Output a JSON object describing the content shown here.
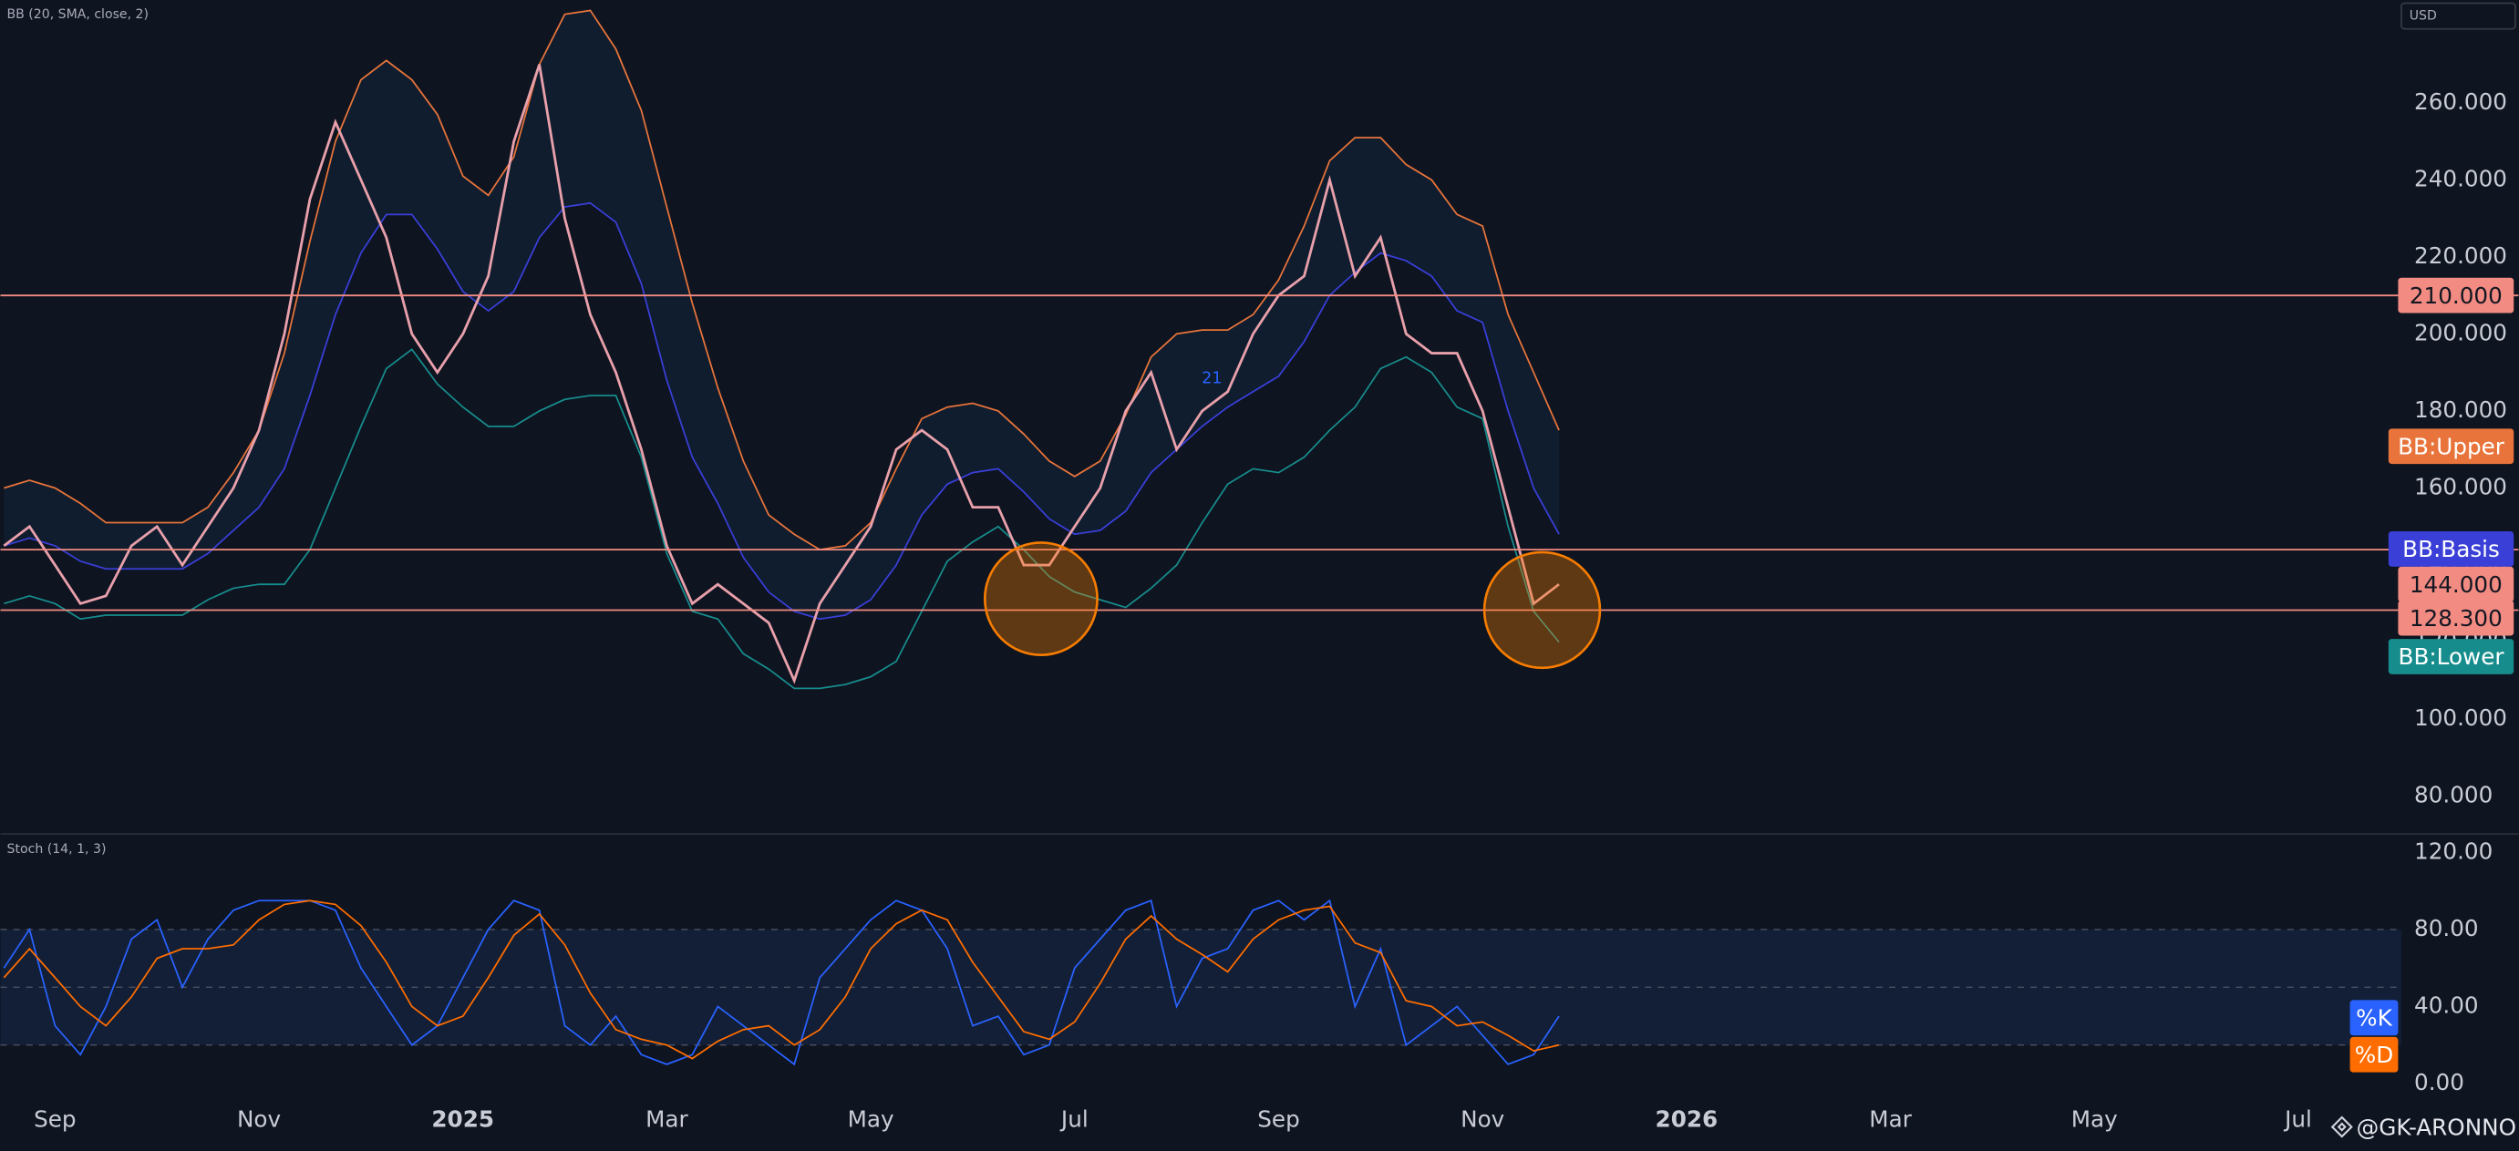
{
  "chart_data": [
    {
      "type": "line",
      "title": "BB (20, SMA, close, 2)",
      "currency": "USD",
      "annotation": "21",
      "watermark": "@GK-ARONNO",
      "x": [
        -0.5,
        -0.25,
        0,
        0.25,
        0.5,
        0.75,
        1,
        1.25,
        1.5,
        1.75,
        2,
        2.25,
        2.5,
        2.75,
        3,
        3.25,
        3.5,
        3.75,
        4,
        4.25,
        4.5,
        4.75,
        5,
        5.25,
        5.5,
        5.75,
        6,
        6.25,
        6.5,
        6.75,
        7,
        7.25,
        7.5,
        7.75,
        8,
        8.25,
        8.5,
        8.75,
        9,
        9.25,
        9.5,
        9.75,
        10,
        10.25,
        10.5,
        10.75,
        11,
        11.25,
        11.5,
        11.75,
        12,
        12.25,
        12.5,
        12.75,
        13,
        13.25,
        13.5,
        13.75,
        14,
        14.25,
        14.5,
        14.75
      ],
      "xlim": [
        -0.535,
        23.01
      ],
      "xticks": [
        {
          "value": 0,
          "label": "Sep"
        },
        {
          "value": 2,
          "label": "Nov"
        },
        {
          "value": 4,
          "label": "2025"
        },
        {
          "value": 6,
          "label": "Mar"
        },
        {
          "value": 8,
          "label": "May"
        },
        {
          "value": 10,
          "label": "Jul"
        },
        {
          "value": 12,
          "label": "Sep"
        },
        {
          "value": 14,
          "label": "Nov"
        },
        {
          "value": 16,
          "label": "2026"
        },
        {
          "value": 18,
          "label": "Mar"
        },
        {
          "value": 20,
          "label": "May"
        },
        {
          "value": 22,
          "label": "Jul"
        }
      ],
      "ylim": [
        70.4,
        286.7
      ],
      "yticks": [
        {
          "value": 80,
          "label": "80.000"
        },
        {
          "value": 100,
          "label": "100.000"
        },
        {
          "value": 120,
          "label": "120.000"
        },
        {
          "value": 140,
          "label": "140.000"
        },
        {
          "value": 160,
          "label": "160.000"
        },
        {
          "value": 180,
          "label": "180.000"
        },
        {
          "value": 200,
          "label": "200.000"
        },
        {
          "value": 220,
          "label": "220.000"
        },
        {
          "value": 240,
          "label": "240.000"
        },
        {
          "value": 260,
          "label": "260.000"
        }
      ],
      "hlines": [
        {
          "value": 210,
          "label": "210.000"
        },
        {
          "value": 144,
          "label": "144.000"
        },
        {
          "value": 128.3,
          "label": "128.300"
        }
      ],
      "hline_color": "#f28b82",
      "series": [
        {
          "color": "#e8a0ab",
          "values": [
            145,
            150,
            140,
            130,
            132,
            145,
            150,
            140,
            150,
            160,
            175,
            200,
            235,
            255,
            240,
            225,
            200,
            190,
            200,
            215,
            250,
            270,
            230,
            205,
            190,
            170,
            145,
            130,
            135,
            130,
            125,
            110,
            130,
            140,
            150,
            170,
            175,
            170,
            155,
            155,
            140,
            140,
            150,
            160,
            180,
            190,
            170,
            180,
            185,
            200,
            210,
            215,
            240,
            215,
            225,
            200,
            195,
            195,
            180,
            155,
            130,
            135
          ]
        },
        {
          "name": "BB:Upper",
          "color": "#e8743b",
          "values": [
            160,
            162,
            160,
            156,
            151,
            151,
            151,
            151,
            155,
            164,
            175,
            195,
            224,
            250,
            266,
            271,
            266,
            257,
            241,
            236,
            246,
            270,
            283,
            284,
            274,
            258,
            233,
            208,
            186,
            167,
            153,
            148,
            144,
            145,
            151,
            165,
            178,
            181,
            182,
            180,
            174,
            167,
            163,
            167,
            179,
            194,
            200,
            201,
            201,
            205,
            214,
            228,
            245,
            251,
            251,
            244,
            240,
            231,
            228,
            205,
            190,
            175
          ]
        },
        {
          "name": "BB:Basis",
          "color": "#3a3fd8",
          "values": [
            145,
            147,
            145,
            141,
            139,
            139,
            139,
            139,
            143,
            149,
            155,
            165,
            184,
            205,
            221,
            231,
            231,
            222,
            211,
            206,
            211,
            225,
            233,
            234,
            229,
            213,
            188,
            168,
            156,
            142,
            133,
            128,
            126,
            127,
            131,
            140,
            153,
            161,
            164,
            165,
            159,
            152,
            148,
            149,
            154,
            164,
            170,
            176,
            181,
            185,
            189,
            198,
            210,
            216,
            221,
            219,
            215,
            206,
            203,
            180,
            160,
            148
          ]
        },
        {
          "name": "BB:Lower",
          "color": "#178c8c",
          "values": [
            130,
            132,
            130,
            126,
            127,
            127,
            127,
            127,
            131,
            134,
            135,
            135,
            144,
            160,
            176,
            191,
            196,
            187,
            181,
            176,
            176,
            180,
            183,
            184,
            184,
            168,
            143,
            128,
            126,
            117,
            113,
            108,
            108,
            109,
            111,
            115,
            128,
            141,
            146,
            150,
            144,
            137,
            133,
            131,
            129,
            134,
            140,
            151,
            161,
            165,
            164,
            168,
            175,
            181,
            191,
            194,
            190,
            181,
            178,
            150,
            128,
            120
          ]
        }
      ]
    },
    {
      "type": "line",
      "title": "Stoch (14, 1, 3)",
      "ylim": [
        -6.7,
        129.2
      ],
      "yticks": [
        {
          "value": 0,
          "label": "0.00"
        },
        {
          "value": 40,
          "label": "40.00"
        },
        {
          "value": 80,
          "label": "80.00"
        },
        {
          "value": 120,
          "label": "120.00"
        }
      ],
      "levels": [
        20,
        50,
        80
      ],
      "series": [
        {
          "name": "%K",
          "color": "#2962ff",
          "values": [
            60,
            80,
            30,
            15,
            40,
            75,
            85,
            50,
            75,
            90,
            95,
            95,
            95,
            90,
            60,
            40,
            20,
            30,
            55,
            80,
            95,
            90,
            30,
            20,
            35,
            15,
            10,
            15,
            40,
            30,
            20,
            10,
            55,
            70,
            85,
            95,
            90,
            70,
            30,
            35,
            15,
            20,
            60,
            75,
            90,
            95,
            40,
            65,
            70,
            90,
            95,
            85,
            95,
            40,
            70,
            20,
            30,
            40,
            25,
            10,
            15,
            35
          ]
        },
        {
          "name": "%D",
          "color": "#ff6d00",
          "values": [
            55,
            70,
            55,
            40,
            30,
            45,
            65,
            70,
            70,
            72,
            85,
            93,
            95,
            93,
            82,
            63,
            40,
            30,
            35,
            55,
            77,
            88,
            72,
            47,
            28,
            23,
            20,
            13,
            22,
            28,
            30,
            20,
            28,
            45,
            70,
            83,
            90,
            85,
            63,
            45,
            27,
            23,
            32,
            52,
            75,
            87,
            75,
            67,
            58,
            75,
            85,
            90,
            92,
            73,
            68,
            43,
            40,
            30,
            32,
            25,
            17,
            20
          ]
        }
      ]
    }
  ]
}
